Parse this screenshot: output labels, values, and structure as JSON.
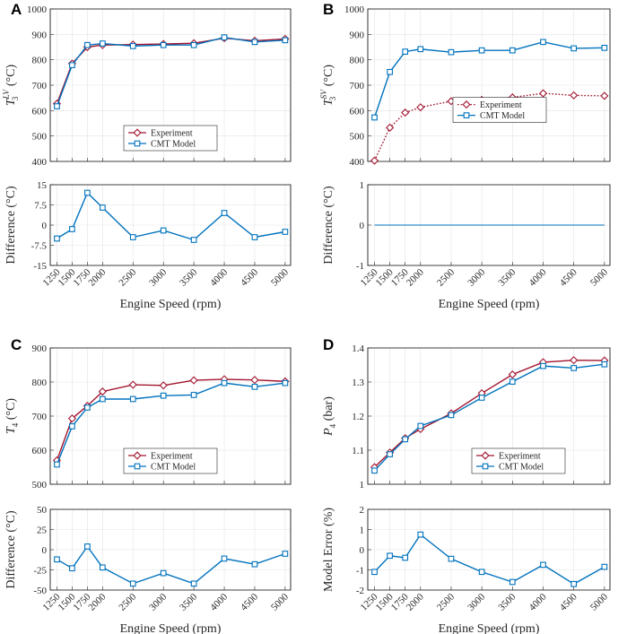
{
  "colors": {
    "experiment": "#a2142f",
    "model": "#0072bd",
    "axis": "#262626",
    "grid": "#e3e3e3"
  },
  "legend": {
    "experiment": "Experiment",
    "model": "CMT Model"
  },
  "x_axis": {
    "label": "Engine Speed (rpm)",
    "ticks": [
      1250,
      1500,
      1750,
      2000,
      2500,
      3000,
      3500,
      4000,
      4500,
      5000
    ],
    "tick_labels": [
      "1250",
      "1500",
      "1750",
      "2000",
      "2500",
      "3000",
      "3500",
      "4000",
      "4500",
      "5000"
    ]
  },
  "chart_data": [
    {
      "panel": "A",
      "type": "line",
      "title": "",
      "x": [
        1250,
        1500,
        1750,
        2000,
        2500,
        3000,
        3500,
        4000,
        4500,
        5000
      ],
      "main": {
        "ylabel_base": "T",
        "ylabel_sub": "3",
        "ylabel_sup": "LV",
        "ylabel_unit": "(°C)",
        "ylim": [
          400,
          1000
        ],
        "yticks": [
          400,
          500,
          600,
          700,
          800,
          900,
          1000
        ],
        "ytick_labels": [
          "400",
          "500",
          "600",
          "700",
          "800",
          "900",
          "1000"
        ],
        "legend_pos": "lower-center",
        "series": [
          {
            "name": "Experiment",
            "style": "solid",
            "marker": "diamond",
            "values": [
              627,
              785,
              850,
              858,
              860,
              862,
              865,
              885,
              875,
              882
            ]
          },
          {
            "name": "CMT Model",
            "style": "solid",
            "marker": "square",
            "values": [
              617,
              779,
              858,
              864,
              854,
              858,
              858,
              888,
              870,
              877
            ]
          }
        ]
      },
      "sub": {
        "ylabel": "Difference (°C)",
        "ylim": [
          -15,
          15
        ],
        "yticks": [
          -15,
          -7.5,
          0,
          7.5,
          15
        ],
        "ytick_labels": [
          "-15",
          "-7.5",
          "0",
          "7.5",
          "15"
        ],
        "series": [
          {
            "name": "Difference",
            "style": "solid",
            "marker": "square",
            "values": [
              -5,
              -1.5,
              12,
              6.5,
              -4.5,
              -2,
              -5.5,
              4.5,
              -4.5,
              -2.5
            ]
          }
        ]
      }
    },
    {
      "panel": "B",
      "type": "line",
      "title": "",
      "x": [
        1250,
        1500,
        1750,
        2000,
        2500,
        3000,
        3500,
        4000,
        4500,
        5000
      ],
      "main": {
        "ylabel_base": "T",
        "ylabel_sub": "3",
        "ylabel_sup": "SV",
        "ylabel_unit": "(°C)",
        "ylim": [
          400,
          1000
        ],
        "yticks": [
          400,
          500,
          600,
          700,
          800,
          900,
          1000
        ],
        "ytick_labels": [
          "400",
          "500",
          "600",
          "700",
          "800",
          "900",
          "1000"
        ],
        "legend_pos": "center",
        "series": [
          {
            "name": "Experiment",
            "style": "dotted",
            "marker": "diamond",
            "values": [
              403,
              533,
              592,
              613,
              637,
              642,
              652,
              668,
              660,
              658
            ]
          },
          {
            "name": "CMT Model",
            "style": "solid",
            "marker": "square",
            "values": [
              573,
              752,
              832,
              842,
              830,
              837,
              837,
              870,
              845,
              847
            ]
          }
        ]
      },
      "sub": {
        "ylabel": "Difference (°C)",
        "ylim": [
          -1,
          1
        ],
        "yticks": [
          -1,
          0,
          1
        ],
        "ytick_labels": [
          "-1",
          "0",
          "1"
        ],
        "series": [
          {
            "name": "Difference",
            "style": "solid",
            "marker": "none",
            "values": [
              0,
              0,
              0,
              0,
              0,
              0,
              0,
              0,
              0,
              0
            ]
          }
        ]
      }
    },
    {
      "panel": "C",
      "type": "line",
      "title": "",
      "x": [
        1250,
        1500,
        1750,
        2000,
        2500,
        3000,
        3500,
        4000,
        4500,
        5000
      ],
      "main": {
        "ylabel_base": "T",
        "ylabel_sub": "4",
        "ylabel_sup": "",
        "ylabel_unit": "(°C)",
        "ylim": [
          500,
          900
        ],
        "yticks": [
          500,
          600,
          700,
          800,
          900
        ],
        "ytick_labels": [
          "500",
          "600",
          "700",
          "800",
          "900"
        ],
        "legend_pos": "lower-center",
        "series": [
          {
            "name": "Experiment",
            "style": "solid",
            "marker": "diamond",
            "values": [
              570,
              693,
              730,
              772,
              792,
              790,
              805,
              808,
              806,
              802
            ]
          },
          {
            "name": "CMT Model",
            "style": "solid",
            "marker": "square",
            "values": [
              558,
              670,
              725,
              750,
              750,
              760,
              762,
              797,
              786,
              797
            ]
          }
        ]
      },
      "sub": {
        "ylabel": "Difference (°C)",
        "ylim": [
          -50,
          50
        ],
        "yticks": [
          -50,
          -25,
          0,
          25,
          50
        ],
        "ytick_labels": [
          "-50",
          "-25",
          "0",
          "25",
          "50"
        ],
        "series": [
          {
            "name": "Difference",
            "style": "solid",
            "marker": "square",
            "values": [
              -12,
              -23,
              4,
              -22,
              -42,
              -29,
              -42,
              -11,
              -18,
              -5
            ]
          }
        ]
      }
    },
    {
      "panel": "D",
      "type": "line",
      "title": "",
      "x": [
        1250,
        1500,
        1750,
        2000,
        2500,
        3000,
        3500,
        4000,
        4500,
        5000
      ],
      "main": {
        "ylabel_base": "P",
        "ylabel_sub": "4",
        "ylabel_sup": "",
        "ylabel_unit": "(bar)",
        "ylim": [
          1,
          1.4
        ],
        "yticks": [
          1,
          1.1,
          1.2,
          1.3,
          1.4
        ],
        "ytick_labels": [
          "1",
          "1.1",
          "1.2",
          "1.3",
          "1.4"
        ],
        "legend_pos": "lower-right",
        "series": [
          {
            "name": "Experiment",
            "style": "solid",
            "marker": "diamond",
            "values": [
              1.05,
              1.093,
              1.135,
              1.162,
              1.208,
              1.267,
              1.322,
              1.358,
              1.364,
              1.363
            ]
          },
          {
            "name": "CMT Model",
            "style": "solid",
            "marker": "square",
            "values": [
              1.04,
              1.088,
              1.132,
              1.171,
              1.203,
              1.254,
              1.301,
              1.347,
              1.341,
              1.352
            ]
          }
        ]
      },
      "sub": {
        "ylabel": "Model Error (%)",
        "ylim": [
          -2,
          2
        ],
        "yticks": [
          -2,
          -1,
          0,
          1,
          2
        ],
        "ytick_labels": [
          "-2",
          "-1",
          "0",
          "1",
          "2"
        ],
        "series": [
          {
            "name": "Model Error",
            "style": "solid",
            "marker": "square",
            "values": [
              -1.1,
              -0.3,
              -0.4,
              0.75,
              -0.45,
              -1.1,
              -1.6,
              -0.75,
              -1.7,
              -0.85
            ]
          }
        ]
      }
    }
  ]
}
